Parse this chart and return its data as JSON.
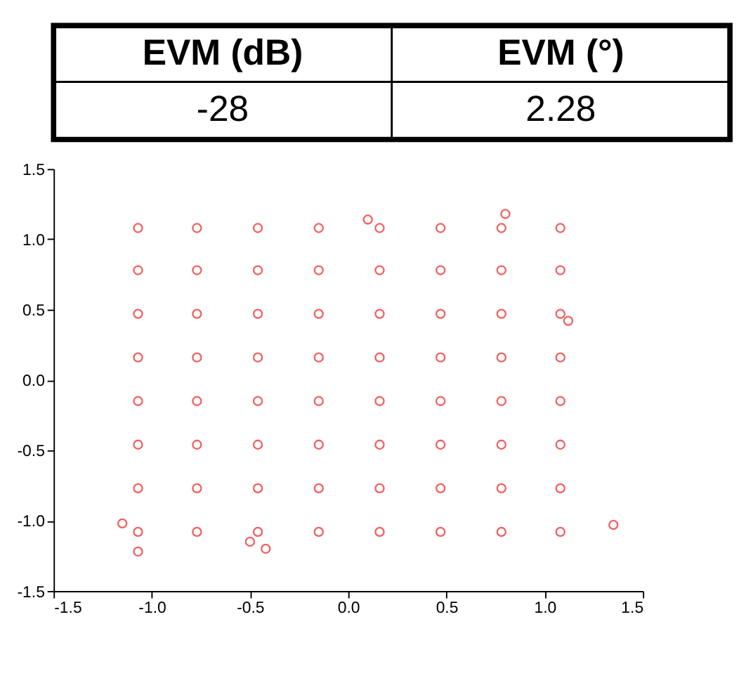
{
  "chart_data": {
    "type": "scatter",
    "annotations": [
      "EVM (dB)",
      "EVM (°)",
      "-28",
      "2.28"
    ],
    "x": [
      -1.07,
      -0.77,
      -0.46,
      -0.15,
      0.16,
      0.47,
      0.78,
      1.08,
      -1.07,
      -0.77,
      -0.46,
      -0.15,
      0.16,
      0.47,
      0.78,
      1.08,
      -1.07,
      -0.77,
      -0.46,
      -0.15,
      0.16,
      0.47,
      0.78,
      1.08,
      -1.07,
      -0.77,
      -0.46,
      -0.15,
      0.16,
      0.47,
      0.78,
      1.08,
      -1.07,
      -0.77,
      -0.46,
      -0.15,
      0.16,
      0.47,
      0.78,
      1.08,
      -1.07,
      -0.77,
      -0.46,
      -0.15,
      0.16,
      0.47,
      0.78,
      1.08,
      -1.07,
      -0.77,
      -0.46,
      -0.15,
      0.16,
      0.47,
      0.78,
      1.08,
      -1.07,
      -0.77,
      -0.46,
      -0.15,
      0.16,
      0.47,
      0.78,
      1.08,
      1.35,
      -0.42,
      -1.07,
      -0.5,
      0.8,
      -1.15,
      0.1,
      1.12
    ],
    "values": [
      1.08,
      1.08,
      1.08,
      1.08,
      1.08,
      1.08,
      1.08,
      1.08,
      0.78,
      0.78,
      0.78,
      0.78,
      0.78,
      0.78,
      0.78,
      0.78,
      0.47,
      0.47,
      0.47,
      0.47,
      0.47,
      0.47,
      0.47,
      0.47,
      0.16,
      0.16,
      0.16,
      0.16,
      0.16,
      0.16,
      0.16,
      0.16,
      -0.15,
      -0.15,
      -0.15,
      -0.15,
      -0.15,
      -0.15,
      -0.15,
      -0.15,
      -0.46,
      -0.46,
      -0.46,
      -0.46,
      -0.46,
      -0.46,
      -0.46,
      -0.46,
      -0.77,
      -0.77,
      -0.77,
      -0.77,
      -0.77,
      -0.77,
      -0.77,
      -0.77,
      -1.08,
      -1.08,
      -1.08,
      -1.08,
      -1.08,
      -1.08,
      -1.08,
      -1.08,
      -1.03,
      -1.2,
      -1.22,
      -1.15,
      1.18,
      -1.02,
      1.14,
      0.42
    ],
    "color": "#ee1c1c",
    "marker": "circle",
    "grid": false,
    "xlim": [
      -1.5,
      1.5
    ],
    "ylim": [
      -1.5,
      1.5
    ],
    "xticks": [
      -1.5,
      {
        "value": -1,
        "label": "-1.0"
      },
      -0.5,
      {
        "value": 0,
        "label": "0.0"
      },
      0.5,
      {
        "value": 1,
        "label": "1.0"
      },
      1.5
    ],
    "yticks": [
      -1.5,
      {
        "value": -1,
        "label": "-1.0"
      },
      -0.5,
      {
        "value": 0,
        "label": "0.0"
      },
      0.5,
      {
        "value": 1,
        "label": "1.0"
      },
      1.5
    ]
  }
}
